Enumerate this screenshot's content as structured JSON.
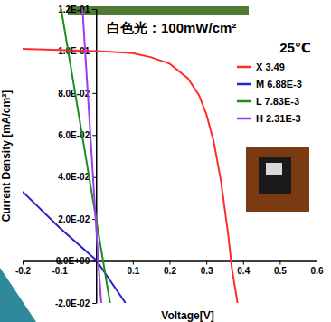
{
  "chart_data": {
    "type": "line",
    "x_label": "Voltage[V]",
    "y_label": "Current Density [mA/cm²]",
    "annotations": [
      "白色光：100mW/cm²",
      "25℃"
    ],
    "xlim": [
      -0.2,
      0.6
    ],
    "ylim": [
      -0.02,
      0.12
    ],
    "xticks": [
      -0.2,
      -0.1,
      0.1,
      0.2,
      0.3,
      0.4,
      0.5,
      0.6
    ],
    "yticks": [
      {
        "value": -0.02,
        "label": "-2.0E-02"
      },
      {
        "value": 0,
        "label": "0.0E+00"
      },
      {
        "value": 0.02,
        "label": "2.0E-02"
      },
      {
        "value": 0.04,
        "label": "4.0E-02"
      },
      {
        "value": 0.06,
        "label": "6.0E-02"
      },
      {
        "value": 0.08,
        "label": "8.0E-02"
      },
      {
        "value": 0.1,
        "label": "1.0E-01"
      },
      {
        "value": 0.12,
        "label": "1.2E-01"
      }
    ],
    "legend": "top-right",
    "series": [
      {
        "name": "X 3.49",
        "color": "#ff2a2a",
        "x": [
          -0.2,
          -0.1,
          0,
          0.05,
          0.1,
          0.15,
          0.2,
          0.25,
          0.28,
          0.3,
          0.32,
          0.34,
          0.36,
          0.37,
          0.385
        ],
        "values": [
          0.101,
          0.1005,
          0.1,
          0.0995,
          0.099,
          0.097,
          0.094,
          0.087,
          0.079,
          0.07,
          0.057,
          0.038,
          0.012,
          -0.004,
          -0.02
        ]
      },
      {
        "name": "M 6.88E-3",
        "color": "#2323c8",
        "x": [
          -0.2,
          -0.1,
          0,
          0.08
        ],
        "values": [
          0.033,
          0.016,
          0.0005,
          -0.02
        ]
      },
      {
        "name": "L 7.83E-3",
        "color": "#1e8c1e",
        "x": [
          -0.095,
          0,
          0.038
        ],
        "values": [
          0.12,
          0.02,
          -0.02
        ]
      },
      {
        "name": "H 2.31E-3",
        "color": "#9b3cf0",
        "x": [
          -0.037,
          0.006,
          0.014
        ],
        "values": [
          0.12,
          0,
          -0.02
        ]
      }
    ]
  }
}
